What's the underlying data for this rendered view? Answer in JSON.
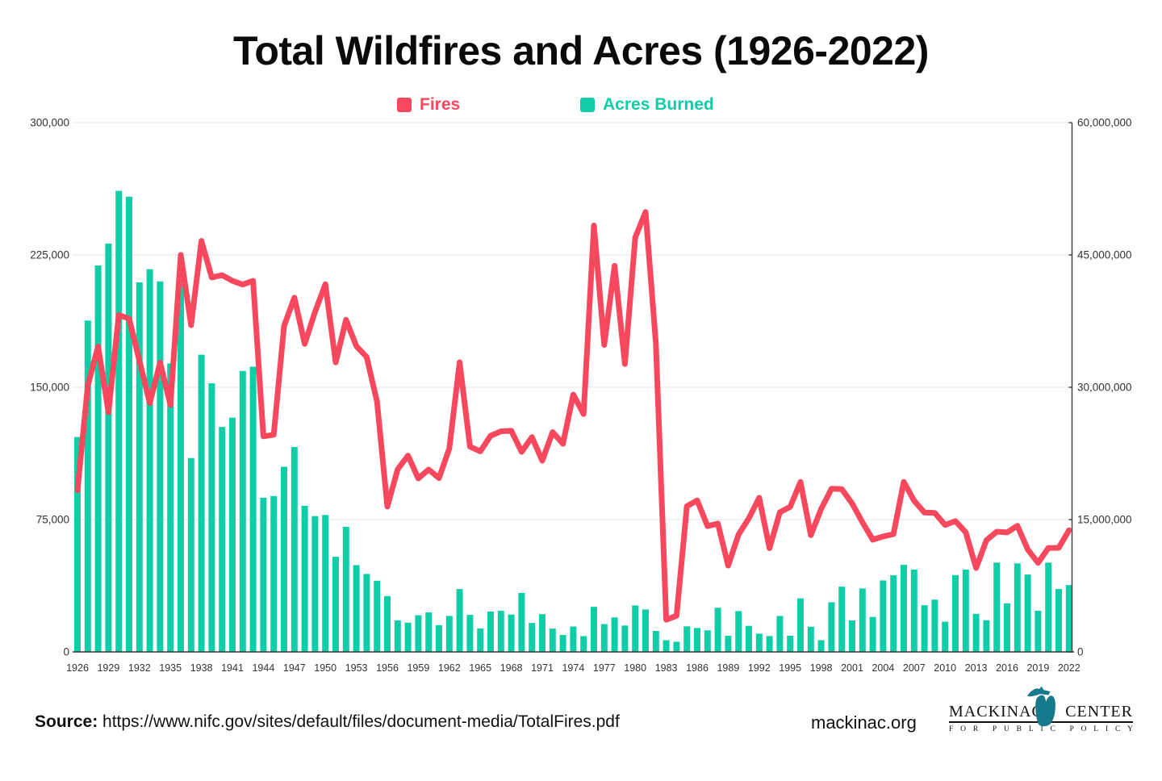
{
  "title": "Total Wildfires and Acres (1926-2022)",
  "legend": [
    {
      "id": "fires",
      "label": "Fires",
      "color": "#F8485E"
    },
    {
      "id": "acres",
      "label": "Acres Burned",
      "color": "#0FCDA7"
    }
  ],
  "footer": {
    "source_label": "Source:",
    "source_url": "https://www.nifc.gov/sites/default/files/document-media/TotalFires.pdf",
    "site": "mackinac.org",
    "logo_word1": "MACKINAC",
    "logo_word2": "CENTER",
    "logo_subtitle": "FOR PUBLIC POLICY",
    "logo_icon": "michigan-mitten-icon",
    "logo_icon_color": "#17798C"
  },
  "chart_data": {
    "type": "combo-bar-line",
    "title": "Total Wildfires and Acres (1926-2022)",
    "grid": "horizontal-on",
    "legend_position": "top-center",
    "x_label_step": 3,
    "x": [
      1926,
      1927,
      1928,
      1929,
      1930,
      1931,
      1932,
      1933,
      1934,
      1935,
      1936,
      1937,
      1938,
      1939,
      1940,
      1941,
      1942,
      1943,
      1944,
      1945,
      1946,
      1947,
      1948,
      1949,
      1950,
      1951,
      1952,
      1953,
      1954,
      1955,
      1956,
      1957,
      1958,
      1959,
      1960,
      1961,
      1962,
      1963,
      1964,
      1965,
      1966,
      1967,
      1968,
      1969,
      1970,
      1971,
      1972,
      1973,
      1974,
      1975,
      1976,
      1977,
      1978,
      1979,
      1980,
      1981,
      1982,
      1983,
      1984,
      1985,
      1986,
      1987,
      1988,
      1989,
      1990,
      1991,
      1992,
      1993,
      1994,
      1995,
      1996,
      1997,
      1998,
      1999,
      2000,
      2001,
      2002,
      2003,
      2004,
      2005,
      2006,
      2007,
      2008,
      2009,
      2010,
      2011,
      2012,
      2013,
      2014,
      2015,
      2016,
      2017,
      2018,
      2019,
      2020,
      2021,
      2022
    ],
    "left_axis": {
      "title": "Fires",
      "range": [
        0,
        300000
      ],
      "ticks": [
        0,
        75000,
        150000,
        225000,
        300000
      ],
      "labels": [
        "0",
        "75,000",
        "150,000",
        "225,000",
        "300,000"
      ]
    },
    "right_axis": {
      "title": "Acres Burned",
      "range": [
        0,
        60000000
      ],
      "ticks": [
        0,
        15000000,
        30000000,
        45000000,
        60000000
      ],
      "labels": [
        "0",
        "15,000,000",
        "30,000,000",
        "45,000,000",
        "60,000,000"
      ]
    },
    "series": [
      {
        "name": "Fires",
        "type": "line",
        "axis": "left",
        "color": "#F8485E",
        "values": [
          91595,
          151000,
          173145,
          135840,
          190980,
          188877,
          165000,
          141000,
          164000,
          140000,
          225031,
          185209,
          232959,
          212229,
          213521,
          210299,
          208218,
          210326,
          122197,
          123075,
          184695,
          200799,
          174625,
          192703,
          208402,
          164090,
          188277,
          173329,
          167162,
          141877,
          82381,
          103508,
          111277,
          98329,
          103387,
          98517,
          115345,
          164183,
          116358,
          113684,
          122500,
          125025,
          125371,
          113351,
          121736,
          108398,
          124554,
          117957,
          145868,
          134872,
          241699,
          173998,
          218842,
          163196,
          234892,
          249370,
          174755,
          18229,
          20493,
          82591,
          85907,
          71300,
          72750,
          48949,
          66481,
          75754,
          87394,
          58810,
          79107,
          82234,
          96363,
          66196,
          81043,
          92487,
          92250,
          84079,
          73457,
          63629,
          65461,
          66753,
          96385,
          85705,
          78979,
          78792,
          71971,
          74126,
          67774,
          47579,
          63312,
          68151,
          67743,
          71499,
          58083,
          50477,
          58950,
          58985,
          68988
        ]
      },
      {
        "name": "Acres Burned",
        "type": "bar",
        "axis": "right",
        "color": "#0FCDA7",
        "values": [
          24355171,
          37564943,
          43808160,
          46294829,
          52266000,
          51607000,
          41891000,
          43383000,
          42000000,
          32700000,
          43860000,
          21980000,
          33691000,
          30449000,
          25504000,
          26554000,
          31854000,
          32333000,
          17483000,
          17671000,
          20987000,
          23226000,
          16557000,
          15397000,
          15519000,
          10781000,
          14187000,
          9835000,
          8836000,
          8067000,
          6329000,
          3571000,
          3316000,
          4156000,
          4478188,
          3036219,
          4078894,
          7120768,
          4197309,
          2652112,
          4574389,
          4658586,
          4231996,
          6689081,
          3278565,
          4278472,
          2641166,
          1915273,
          2879095,
          1791327,
          5109926,
          3152644,
          3910913,
          2986826,
          5260825,
          4814206,
          2382036,
          1323666,
          1148409,
          2896147,
          2719162,
          2447296,
          5009290,
          1827310,
          4621621,
          2953578,
          2069929,
          1797574,
          4073579,
          1840546,
          6065998,
          2856959,
          1329704,
          5626093,
          7393493,
          3570911,
          7184712,
          3960842,
          8097880,
          8689389,
          9873745,
          9328045,
          5292468,
          5921786,
          3422724,
          8711367,
          9326238,
          4319546,
          3595613,
          10125149,
          5509995,
          10026086,
          8767492,
          4664364,
          10122336,
          7125643,
          7577183
        ]
      }
    ]
  }
}
